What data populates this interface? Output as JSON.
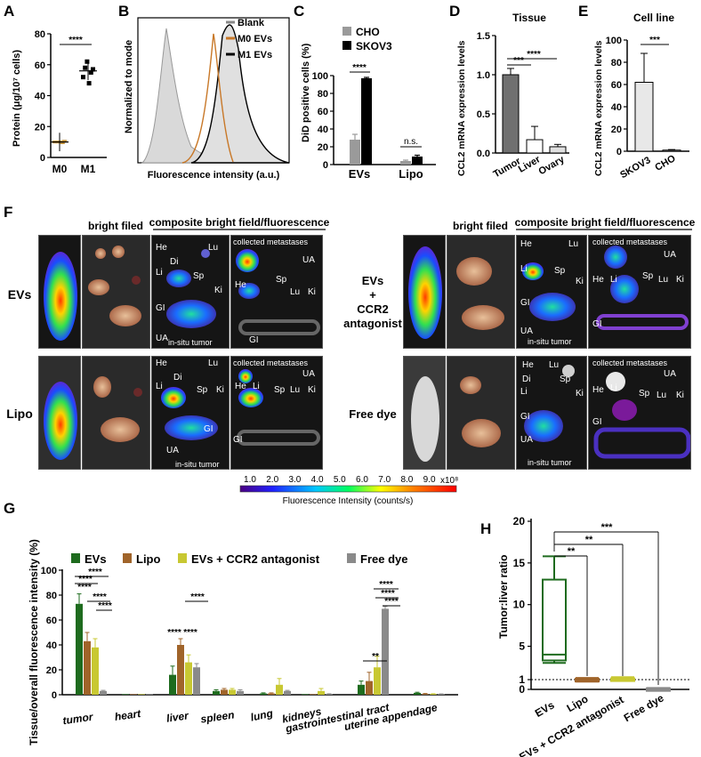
{
  "panels": {
    "A": {
      "letter": "A",
      "ylabel": "Protein (μg/10⁷ cells)",
      "yticks": [
        "0",
        "20",
        "40",
        "60",
        "80"
      ],
      "categories": [
        "M0",
        "M1"
      ],
      "sig": "****"
    },
    "B": {
      "letter": "B",
      "xlabel": "Fluorescence intensity (a.u.)",
      "ylabel": "Normalized to mode",
      "legend": [
        "Blank",
        "M0 EVs",
        "M1 EVs"
      ]
    },
    "C": {
      "letter": "C",
      "ylabel": "DiD positive cells (%)",
      "yticks": [
        "0",
        "20",
        "40",
        "60",
        "80",
        "100"
      ],
      "categories": [
        "EVs",
        "Lipo"
      ],
      "legend": [
        "CHO",
        "SKOV3"
      ],
      "sig": [
        "****",
        "n.s."
      ]
    },
    "D": {
      "letter": "D",
      "title": "Tissue",
      "ylabel": "CCL2 mRNA expression levels",
      "yticks": [
        "0.0",
        "0.5",
        "1.0",
        "1.5"
      ],
      "categories": [
        "Tumor",
        "Liver",
        "Ovary"
      ],
      "sig": [
        "***",
        "****"
      ]
    },
    "E": {
      "letter": "E",
      "title": "Cell line",
      "ylabel": "CCL2 mRNA expression levels",
      "yticks": [
        "0",
        "20",
        "40",
        "60",
        "80",
        "100"
      ],
      "categories": [
        "SKOV3",
        "CHO"
      ],
      "sig": "***"
    },
    "F": {
      "letter": "F",
      "col_bright": "bright filed",
      "col_composite": "composite bright field/fluorescence",
      "row_evs": "EVs",
      "row_lipo": "Lipo",
      "row_evs_ccr2": [
        "EVs",
        "+",
        "CCR2",
        "antagonist"
      ],
      "row_free": "Free dye",
      "organ_labels": [
        "He",
        "Lu",
        "Di",
        "Li",
        "Sp",
        "Ki",
        "GI",
        "UA"
      ],
      "in_situ": "in-situ tumor",
      "collected": "collected metastases",
      "colorbar_ticks": [
        "1.0",
        "2.0",
        "3.0",
        "4.0",
        "5.0",
        "6.0",
        "7.0",
        "8.0",
        "9.0"
      ],
      "colorbar_exp": "x10⁸",
      "colorbar_label": "Fluorescence Intensity (counts/s)"
    },
    "G": {
      "letter": "G",
      "ylabel": "Tissue/overall fluorescence intensity (%)",
      "yticks": [
        "0",
        "20",
        "40",
        "60",
        "80",
        "100"
      ],
      "legend": [
        "EVs",
        "Lipo",
        "EVs + CCR2 antagonist",
        "Free dye"
      ],
      "categories": [
        "tumor",
        "heart",
        "liver",
        "spleen",
        "lung",
        "kidneys",
        "gastrointestinal tract",
        "uterine appendage"
      ],
      "sig_tumor": [
        "****",
        "****",
        "****",
        "****",
        "****"
      ],
      "sig_liver": [
        "****",
        "****",
        "****"
      ],
      "sig_gi": [
        "**",
        "****",
        "****",
        "****"
      ]
    },
    "H": {
      "letter": "H",
      "ylabel": "Tumor:liver ratio",
      "yticks": [
        "0",
        "1",
        "5",
        "10",
        "15",
        "20"
      ],
      "categories": [
        "EVs",
        "Lipo",
        "EVs + CCR2 antagonist",
        "Free dye"
      ],
      "sig": [
        "**",
        "**",
        "***"
      ]
    }
  },
  "colors": {
    "evs": "#1e6b1e",
    "lipo": "#a0642a",
    "ccr2": "#c8c832",
    "free": "#8a8a8a",
    "cho": "#9a9a9a",
    "skov3": "#000000"
  },
  "chart_data": [
    {
      "type": "scatter",
      "panel": "A",
      "categories": [
        "M0",
        "M1"
      ],
      "values": [
        [
          10,
          10,
          10,
          10,
          9.5,
          10.5
        ],
        [
          52,
          58,
          62,
          48,
          55,
          57
        ]
      ],
      "means": [
        10,
        56
      ],
      "ylim": [
        0,
        80
      ],
      "ylabel": "Protein (μg/10⁷ cells)"
    },
    {
      "type": "line",
      "panel": "B",
      "series": [
        {
          "name": "Blank"
        },
        {
          "name": "M0 EVs"
        },
        {
          "name": "M1 EVs"
        }
      ],
      "xlabel": "Fluorescence intensity (a.u.)",
      "ylabel": "Normalized to mode"
    },
    {
      "type": "bar",
      "panel": "C",
      "categories": [
        "EVs",
        "Lipo"
      ],
      "series": [
        {
          "name": "CHO",
          "values": [
            28,
            4
          ],
          "errors": [
            6,
            1
          ]
        },
        {
          "name": "SKOV3",
          "values": [
            97,
            9
          ],
          "errors": [
            1,
            1.5
          ]
        }
      ],
      "ylim": [
        0,
        100
      ],
      "ylabel": "DiD positive cells (%)"
    },
    {
      "type": "bar",
      "panel": "D",
      "title": "Tissue",
      "categories": [
        "Tumor",
        "Liver",
        "Ovary"
      ],
      "values": [
        1.0,
        0.17,
        0.08
      ],
      "errors": [
        0.08,
        0.17,
        0.03
      ],
      "ylim": [
        0,
        1.5
      ],
      "ylabel": "CCL2 mRNA expression levels"
    },
    {
      "type": "bar",
      "panel": "E",
      "title": "Cell line",
      "categories": [
        "SKOV3",
        "CHO"
      ],
      "values": [
        62,
        1
      ],
      "errors": [
        26,
        0.5
      ],
      "ylim": [
        0,
        100
      ],
      "ylabel": "CCL2 mRNA expression levels"
    },
    {
      "type": "bar",
      "panel": "G",
      "categories": [
        "tumor",
        "heart",
        "liver",
        "spleen",
        "lung",
        "kidneys",
        "gastrointestinal tract",
        "uterine appendage"
      ],
      "series": [
        {
          "name": "EVs",
          "values": [
            73,
            0,
            16,
            3,
            1,
            0,
            8,
            1.5
          ],
          "errors": [
            8,
            0,
            7,
            1,
            0.5,
            0,
            3,
            0.5
          ]
        },
        {
          "name": "Lipo",
          "values": [
            43,
            0,
            40,
            4,
            1,
            0,
            11,
            0.5
          ],
          "errors": [
            7,
            0,
            5,
            1,
            0.5,
            0,
            7,
            0.5
          ]
        },
        {
          "name": "EVs + CCR2 antagonist",
          "values": [
            38,
            0,
            26,
            4,
            8,
            3,
            22,
            0.5
          ],
          "errors": [
            7,
            0,
            6,
            1,
            5,
            2,
            9,
            0.3
          ]
        },
        {
          "name": "Free dye",
          "values": [
            3,
            0,
            22,
            3,
            3,
            0.5,
            69,
            0.5
          ],
          "errors": [
            0.5,
            0,
            3,
            1,
            0.5,
            0.3,
            2,
            0.2
          ]
        }
      ],
      "ylim": [
        0,
        100
      ],
      "ylabel": "Tissue/overall fluorescence intensity (%)"
    },
    {
      "type": "box",
      "panel": "H",
      "categories": [
        "EVs",
        "Lipo",
        "EVs + CCR2 antagonist",
        "Free dye"
      ],
      "boxes": [
        {
          "min": 3,
          "q1": 3.3,
          "median": 4,
          "q3": 13,
          "max": 15.8
        },
        {
          "min": 0.8,
          "q1": 0.9,
          "median": 1.0,
          "q3": 1.1,
          "max": 1.2
        },
        {
          "min": 0.9,
          "q1": 1.0,
          "median": 1.05,
          "q3": 1.15,
          "max": 1.3
        },
        {
          "min": 0.05,
          "q1": 0.08,
          "median": 0.1,
          "q3": 0.12,
          "max": 0.15
        }
      ],
      "ylim": [
        0,
        20
      ],
      "ylabel": "Tumor:liver ratio",
      "reference_line": 1
    }
  ]
}
